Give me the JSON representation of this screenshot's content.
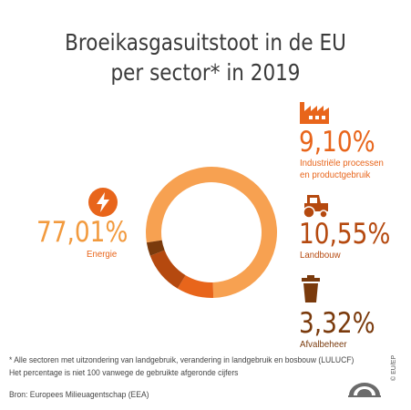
{
  "header": {
    "title_line1": "Broeikasgasuitstoot in de EU",
    "title_line2": "per sector* in 2019"
  },
  "chart_data": {
    "type": "pie",
    "title": "Broeikasgasuitstoot in de EU per sector* in 2019",
    "categories": [
      "Energie",
      "Industriële processen en productgebruik",
      "Landbouw",
      "Afvalbeheer"
    ],
    "values": [
      77.01,
      9.1,
      10.55,
      3.32
    ],
    "value_labels": [
      "77,01%",
      "9,10%",
      "10,55%",
      "3,32%"
    ],
    "colors": [
      "#f7a151",
      "#e8651b",
      "#b5490f",
      "#7a3a0c"
    ]
  },
  "labels": {
    "energie": {
      "pct": "77,01%",
      "name": "Energie"
    },
    "industrie": {
      "pct": "9,10%",
      "line1": "Industriële processen",
      "line2": "en productgebruik"
    },
    "landbouw": {
      "pct": "10,55%",
      "name": "Landbouw"
    },
    "afval": {
      "pct": "3,32%",
      "name": "Afvalbeheer"
    }
  },
  "colors": {
    "energie": "#f7a151",
    "industrie": "#e8651b",
    "landbouw": "#b5490f",
    "afval": "#7a3a0c",
    "energie_text": "#f29a3e"
  },
  "icons": {
    "energie": "lightning-icon",
    "industrie": "factory-icon",
    "landbouw": "tractor-icon",
    "afval": "trash-bin-icon"
  },
  "footer": {
    "note1": "* Alle sectoren met uitzondering van landgebruik, verandering in landgebruik en bosbouw (LULUCF)",
    "note2": "Het percentage is niet 100 vanwege de gebruikte afgeronde cijfers",
    "source": "Bron: Europees Milieuagentschap (EEA)",
    "copyright": "© EU/EP"
  }
}
